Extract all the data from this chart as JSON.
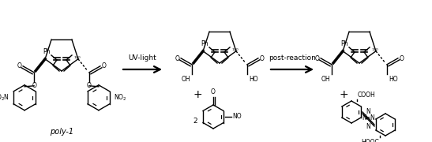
{
  "background_color": "#ffffff",
  "arrow1_label": "UV-light",
  "arrow2_label": "post-reaction",
  "poly1_label": "poly-1",
  "figsize": [
    5.47,
    1.8
  ],
  "dpi": 100,
  "lw": 1.0,
  "fs": 6.5,
  "fs_s": 5.5
}
